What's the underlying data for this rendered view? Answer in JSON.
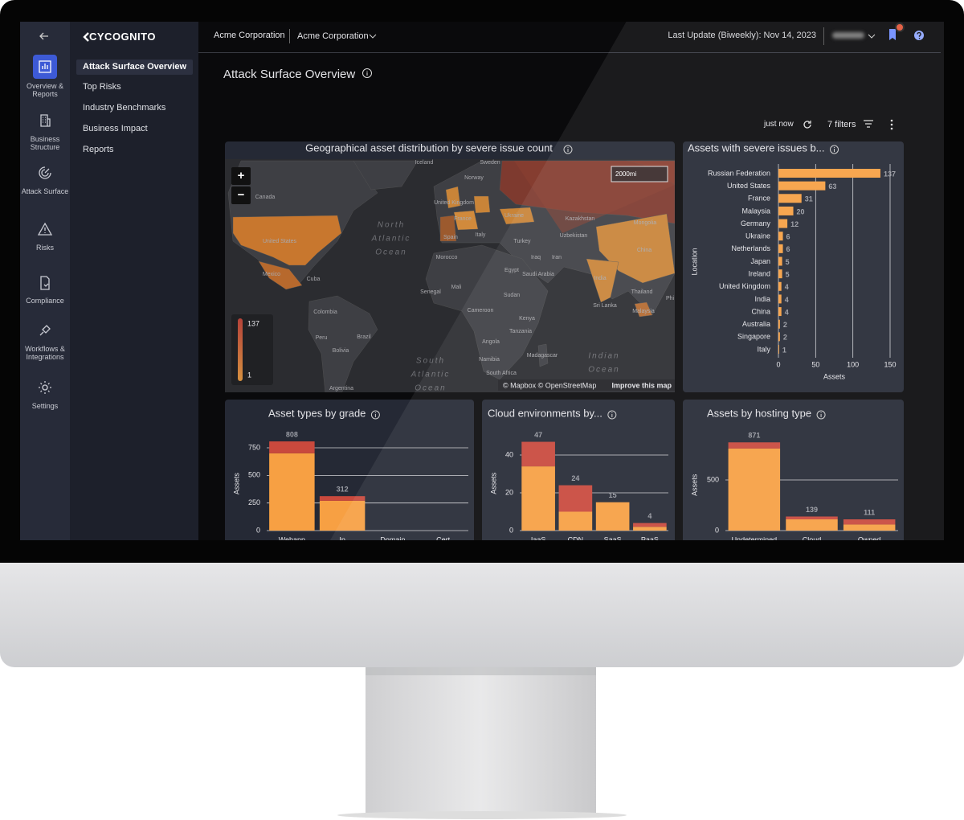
{
  "sidebar": {
    "logo": "CYCOGNITO",
    "rail": [
      "Overview & Reports",
      "Business Structure",
      "Attack Surface",
      "Risks",
      "Compliance",
      "Workflows & Integrations",
      "Settings"
    ],
    "nav": [
      "Attack Surface Overview",
      "Top Risks",
      "Industry Benchmarks",
      "Business Impact",
      "Reports"
    ]
  },
  "header": {
    "organization": "Acme Corporation",
    "selected_organization": "Acme Corporation",
    "last_update": "Last Update (Biweekly): Nov 14, 2023"
  },
  "page": {
    "title": "Attack Surface Overview",
    "refreshed": "just now",
    "filters": "7 filters"
  },
  "map": {
    "title": "Geographical asset distribution by severe issue count",
    "scale": "2000mi",
    "legend_max": 137,
    "legend_min": 1,
    "attribution": "© Mapbox © OpenStreetMap",
    "improve_link": "Improve this map",
    "zoom_in": "+",
    "zoom_out": "−",
    "labels": [
      "Iceland",
      "Sweden",
      "Norway",
      "Canada",
      "United States",
      "Mexico",
      "Cuba",
      "Colombia",
      "Peru",
      "Brazil",
      "Bolivia",
      "Argentina",
      "United Kingdom",
      "France",
      "Spain",
      "Italy",
      "Ukraine",
      "Kazakhstan",
      "Mongolia",
      "Uzbekistan",
      "Turkey",
      "Morocco",
      "Egypt",
      "Iraq",
      "Iran",
      "Saudi Arabia",
      "Mali",
      "Senegal",
      "Sudan",
      "Cameroon",
      "Kenya",
      "Tanzania",
      "Angola",
      "Namibia",
      "Madagascar",
      "South Africa",
      "China",
      "India",
      "Sri Lanka",
      "Thailand",
      "Malaysia",
      "Phi"
    ],
    "oceans": [
      [
        "North",
        "Atlantic",
        "Ocean"
      ],
      [
        "South",
        "Atlantic",
        "Ocean"
      ],
      [
        "Indian",
        "Ocean"
      ]
    ]
  },
  "chart_data": [
    {
      "type": "bar",
      "orientation": "horizontal",
      "title": "Assets with severe issues b...",
      "categories": [
        "Russian Federation",
        "United States",
        "France",
        "Malaysia",
        "Germany",
        "Ukraine",
        "Netherlands",
        "Japan",
        "Ireland",
        "United Kingdom",
        "India",
        "China",
        "Australia",
        "Singapore",
        "Italy"
      ],
      "values": [
        137,
        63,
        31,
        20,
        12,
        6,
        6,
        5,
        5,
        4,
        4,
        4,
        2,
        2,
        1
      ],
      "color": "#f7a043",
      "xlim": [
        0,
        150
      ],
      "xticks": [
        0,
        50,
        100,
        150
      ],
      "x_label": "Assets",
      "y_label": "Location",
      "grid": true
    },
    {
      "type": "bar",
      "stacked": true,
      "title": "Asset types by grade",
      "categories": [
        "Webapp",
        "Ip",
        "Domain",
        "Cert"
      ],
      "series": [
        {
          "color": "#f7a043",
          "values": [
            700,
            270,
            0,
            0
          ]
        },
        {
          "color": "#c9493d",
          "values": [
            108,
            42,
            0,
            0
          ]
        }
      ],
      "totals": [
        808,
        312,
        null,
        null
      ],
      "ylim": [
        0,
        850
      ],
      "yticks": [
        0,
        250,
        500,
        750
      ],
      "y_label": "Assets",
      "grid": true
    },
    {
      "type": "bar",
      "stacked": true,
      "title": "Cloud environments by...",
      "categories": [
        "IaaS",
        "CDN",
        "SaaS",
        "PaaS"
      ],
      "series": [
        {
          "color": "#f7a043",
          "values": [
            34,
            10,
            15,
            2
          ]
        },
        {
          "color": "#c9493d",
          "values": [
            13,
            14,
            0,
            2
          ]
        }
      ],
      "totals": [
        47,
        24,
        15,
        4
      ],
      "ylim": [
        0,
        50
      ],
      "yticks": [
        0,
        20,
        40
      ],
      "y_label": "Assets",
      "grid": true
    },
    {
      "type": "bar",
      "stacked": true,
      "title": "Assets by hosting type",
      "categories": [
        "Undetermined",
        "Cloud",
        "Owned"
      ],
      "series": [
        {
          "color": "#f7a043",
          "values": [
            810,
            111,
            60
          ]
        },
        {
          "color": "#c9493d",
          "values": [
            61,
            28,
            51
          ]
        }
      ],
      "totals": [
        871,
        139,
        111
      ],
      "ylim": [
        0,
        900
      ],
      "yticks": [
        0,
        500
      ],
      "y_label": "Assets",
      "grid": true
    }
  ]
}
